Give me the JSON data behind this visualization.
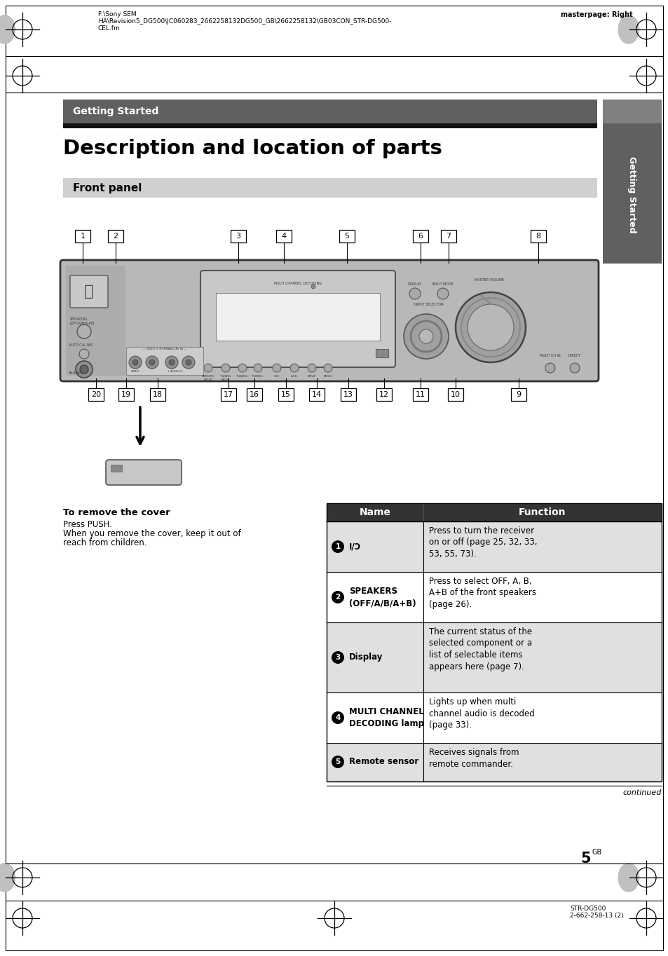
{
  "bg_color": "#ffffff",
  "header_text_left_line1": "F:\\Sony SEM",
  "header_text_left_line2": "HA\\Revision5_DG500\\JC060283_2662258132DG500_GB\\2662258132\\GB03CON_STR-DG500-",
  "header_text_left_line3": "CEL.fm",
  "header_text_right": "masterpage: Right",
  "footer_text_line1": "STR-DG500",
  "footer_text_line2": "2-662-258-13 (2)",
  "page_number": "5",
  "page_number_super": "GB",
  "continued_text": "continued",
  "section_banner_color": "#606060",
  "section_banner_text": "Getting Started",
  "section_banner_text_color": "#ffffff",
  "black_rule_color": "#111111",
  "title_text": "Description and location of parts",
  "front_panel_banner_color": "#d0d0d0",
  "front_panel_text": "Front panel",
  "right_tab_color": "#606060",
  "right_tab_text": "Getting Started",
  "right_tab_text_color": "#ffffff",
  "table_header_color": "#333333",
  "table_headers": [
    "Name",
    "Function"
  ],
  "table_row_shade": "#e0e0e0",
  "table_rows": [
    {
      "number": "1",
      "name": "I/Ɔ",
      "function": "Press to turn the receiver\non or off (page 25, 32, 33,\n53, 55, 73)."
    },
    {
      "number": "2",
      "name": "SPEAKERS\n(OFF/A/B/A+B)",
      "function": "Press to select OFF, A, B,\nA+B of the front speakers\n(page 26)."
    },
    {
      "number": "3",
      "name": "Display",
      "function": "The current status of the\nselected component or a\nlist of selectable items\nappears here (page 7)."
    },
    {
      "number": "4",
      "name": "MULTI CHANNEL\nDECODING lamp",
      "function": "Lights up when multi\nchannel audio is decoded\n(page 33)."
    },
    {
      "number": "5",
      "name": "Remote sensor",
      "function": "Receives signals from\nremote commander."
    }
  ],
  "cover_line1": "To remove the cover",
  "cover_line2": "Press PUSH.",
  "cover_line3": "When you remove the cover, keep it out of",
  "cover_line4": "reach from children.",
  "device_color": "#b8b8b8",
  "device_border": "#333333",
  "screen_color": "#f0f0f0",
  "knob_color": "#a0a0a0"
}
